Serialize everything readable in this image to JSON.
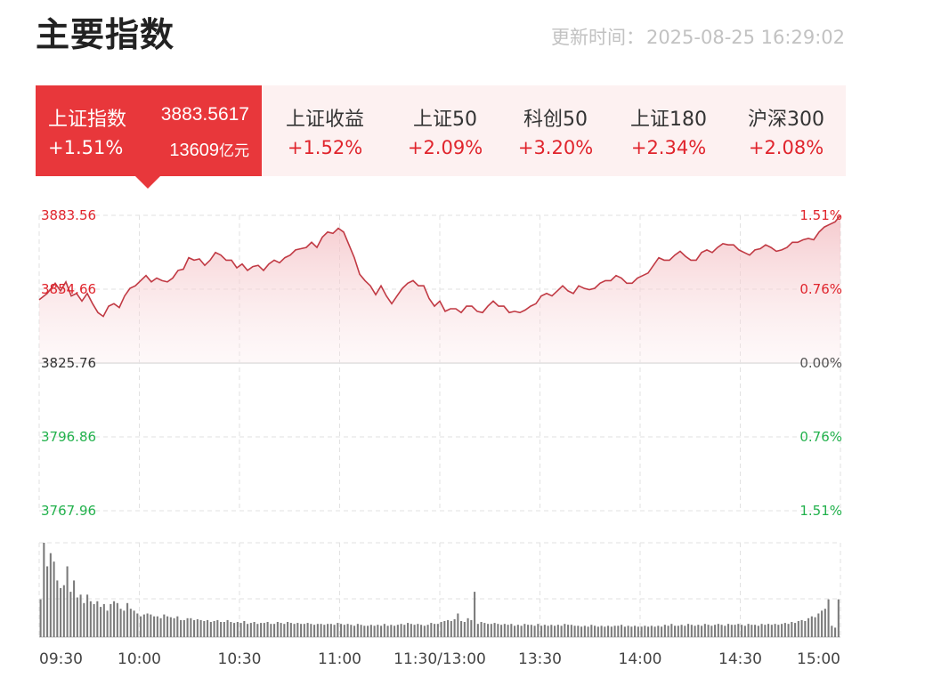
{
  "header": {
    "title": "主要指数",
    "update_label": "更新时间：",
    "update_time": "2025-08-25 16:29:02"
  },
  "tabs": [
    {
      "name": "上证指数",
      "value": "3883.5617",
      "change": "+1.51%",
      "amount": "13609",
      "amount_unit": "亿元",
      "active": true
    },
    {
      "name": "上证收益",
      "change": "+1.52%"
    },
    {
      "name": "上证50",
      "change": "+2.09%"
    },
    {
      "name": "科创50",
      "change": "+3.20%"
    },
    {
      "name": "上证180",
      "change": "+2.34%"
    },
    {
      "name": "沪深300",
      "change": "+2.08%"
    }
  ],
  "colors": {
    "up": "#e0242c",
    "down": "#22b14c",
    "flat": "#333333",
    "active_tab": "#e8373b",
    "tab_bg": "#fdf1f1",
    "volume": "#7a7a7a"
  },
  "chart_data": {
    "type": "line",
    "series_name": "上证指数",
    "prev_close": 3825.76,
    "ylim": [
      3767.96,
      3883.56
    ],
    "y_ticks_left": [
      "3883.56",
      "3854.66",
      "3825.76",
      "3796.86",
      "3767.96"
    ],
    "y_ticks_right": [
      "1.51%",
      "0.76%",
      "0.00%",
      "0.76%",
      "1.51%"
    ],
    "x_ticks": [
      "09:30",
      "10:00",
      "10:30",
      "11:00",
      "11:30/13:00",
      "13:30",
      "14:00",
      "14:30",
      "15:00"
    ],
    "x_max_minutes": 240,
    "price_points": [
      [
        0,
        3850.5
      ],
      [
        3,
        3853
      ],
      [
        6,
        3857
      ],
      [
        8,
        3854
      ],
      [
        10,
        3857.5
      ],
      [
        12,
        3852
      ],
      [
        14,
        3853
      ],
      [
        16,
        3850
      ],
      [
        18,
        3853
      ],
      [
        20,
        3849
      ],
      [
        22,
        3845.5
      ],
      [
        24,
        3844
      ],
      [
        26,
        3848
      ],
      [
        28,
        3849
      ],
      [
        30,
        3847.5
      ],
      [
        32,
        3852
      ],
      [
        34,
        3855
      ],
      [
        36,
        3856
      ],
      [
        38,
        3858
      ],
      [
        40,
        3860
      ],
      [
        42,
        3857.5
      ],
      [
        44,
        3859
      ],
      [
        46,
        3858
      ],
      [
        48,
        3857.5
      ],
      [
        50,
        3859
      ],
      [
        52,
        3862
      ],
      [
        54,
        3862.5
      ],
      [
        56,
        3867
      ],
      [
        58,
        3866
      ],
      [
        60,
        3866.5
      ],
      [
        62,
        3864
      ],
      [
        64,
        3866
      ],
      [
        66,
        3869
      ],
      [
        68,
        3868
      ],
      [
        70,
        3866
      ],
      [
        72,
        3866
      ],
      [
        74,
        3863
      ],
      [
        76,
        3864.5
      ],
      [
        78,
        3862
      ],
      [
        80,
        3863.5
      ],
      [
        82,
        3864
      ],
      [
        84,
        3862
      ],
      [
        86,
        3864.5
      ],
      [
        88,
        3866
      ],
      [
        90,
        3865
      ],
      [
        92,
        3867
      ],
      [
        94,
        3868
      ],
      [
        96,
        3870
      ],
      [
        98,
        3870.5
      ],
      [
        100,
        3871
      ],
      [
        102,
        3873
      ],
      [
        104,
        3871
      ],
      [
        106,
        3875
      ],
      [
        108,
        3877
      ],
      [
        110,
        3876.5
      ],
      [
        112,
        3878.5
      ],
      [
        114,
        3877
      ],
      [
        116,
        3872
      ],
      [
        118,
        3867
      ],
      [
        120,
        3860.5
      ],
      [
        122,
        3858
      ],
      [
        124,
        3856
      ],
      [
        126,
        3852.5
      ],
      [
        128,
        3856
      ],
      [
        130,
        3852
      ],
      [
        132,
        3849
      ],
      [
        134,
        3852
      ],
      [
        136,
        3855
      ],
      [
        138,
        3857
      ],
      [
        140,
        3858
      ],
      [
        142,
        3856
      ],
      [
        144,
        3856
      ],
      [
        146,
        3851
      ],
      [
        148,
        3848
      ],
      [
        150,
        3850
      ],
      [
        152,
        3846
      ],
      [
        154,
        3847
      ],
      [
        156,
        3847
      ],
      [
        158,
        3845.5
      ],
      [
        160,
        3848
      ],
      [
        162,
        3848
      ],
      [
        164,
        3846
      ],
      [
        166,
        3845.5
      ],
      [
        168,
        3848
      ],
      [
        170,
        3850
      ],
      [
        172,
        3848
      ],
      [
        174,
        3848
      ],
      [
        176,
        3845.5
      ],
      [
        178,
        3846
      ],
      [
        180,
        3845.5
      ],
      [
        182,
        3846.5
      ],
      [
        184,
        3848
      ],
      [
        186,
        3849
      ],
      [
        188,
        3852
      ],
      [
        190,
        3853
      ],
      [
        192,
        3852
      ],
      [
        194,
        3854
      ],
      [
        196,
        3856
      ],
      [
        198,
        3854
      ],
      [
        200,
        3853
      ],
      [
        202,
        3856
      ],
      [
        204,
        3855
      ],
      [
        206,
        3854.5
      ],
      [
        208,
        3855
      ],
      [
        210,
        3857
      ],
      [
        212,
        3858
      ],
      [
        214,
        3858
      ],
      [
        216,
        3860
      ],
      [
        218,
        3859
      ],
      [
        220,
        3857
      ],
      [
        222,
        3857
      ],
      [
        224,
        3859
      ],
      [
        226,
        3860
      ],
      [
        228,
        3861
      ],
      [
        230,
        3864
      ],
      [
        232,
        3867
      ],
      [
        234,
        3866
      ],
      [
        236,
        3866
      ],
      [
        238,
        3868
      ],
      [
        240,
        3869.5
      ],
      [
        242,
        3867.5
      ],
      [
        244,
        3866
      ],
      [
        246,
        3866
      ],
      [
        248,
        3869
      ],
      [
        250,
        3870
      ],
      [
        252,
        3869
      ],
      [
        254,
        3871
      ],
      [
        256,
        3872.5
      ],
      [
        258,
        3872
      ],
      [
        260,
        3872
      ],
      [
        262,
        3870
      ],
      [
        264,
        3869
      ],
      [
        266,
        3868
      ],
      [
        268,
        3870
      ],
      [
        270,
        3870.5
      ],
      [
        272,
        3872
      ],
      [
        274,
        3871
      ],
      [
        276,
        3869.5
      ],
      [
        278,
        3870
      ],
      [
        280,
        3871
      ],
      [
        282,
        3873
      ],
      [
        284,
        3873
      ],
      [
        286,
        3874
      ],
      [
        288,
        3874.5
      ],
      [
        290,
        3874
      ],
      [
        292,
        3877
      ],
      [
        294,
        3879
      ],
      [
        296,
        3880
      ],
      [
        298,
        3881
      ],
      [
        300,
        3883.56
      ]
    ],
    "volume_max": 100,
    "volume": [
      40,
      100,
      75,
      89,
      80,
      60,
      52,
      55,
      75,
      48,
      60,
      42,
      45,
      36,
      45,
      38,
      35,
      38,
      32,
      35,
      28,
      35,
      38,
      36,
      30,
      28,
      36,
      30,
      28,
      25,
      22,
      24,
      25,
      24,
      22,
      22,
      20,
      24,
      22,
      21,
      20,
      22,
      18,
      18,
      20,
      20,
      18,
      19,
      18,
      17,
      18,
      16,
      17,
      18,
      16,
      16,
      18,
      16,
      15,
      16,
      15,
      17,
      14,
      15,
      16,
      14,
      15,
      15,
      16,
      14,
      14,
      16,
      15,
      14,
      16,
      15,
      14,
      15,
      14,
      14,
      15,
      14,
      13,
      14,
      14,
      13,
      14,
      14,
      13,
      15,
      14,
      13,
      14,
      13,
      12,
      14,
      13,
      12,
      12,
      13,
      12,
      13,
      12,
      14,
      12,
      13,
      12,
      13,
      14,
      13,
      15,
      14,
      13,
      14,
      13,
      12,
      13,
      15,
      14,
      14,
      16,
      17,
      18,
      17,
      19,
      25,
      17,
      16,
      20,
      18,
      48,
      14,
      16,
      15,
      14,
      14,
      15,
      14,
      13,
      14,
      13,
      14,
      12,
      13,
      12,
      14,
      13,
      13,
      12,
      14,
      12,
      13,
      12,
      13,
      12,
      13,
      12,
      14,
      13,
      13,
      12,
      12,
      11,
      12,
      11,
      13,
      12,
      11,
      12,
      11,
      12,
      11,
      12,
      12,
      13,
      11,
      12,
      11,
      12,
      11,
      11,
      12,
      11,
      12,
      11,
      12,
      11,
      13,
      12,
      14,
      12,
      12,
      13,
      12,
      14,
      13,
      12,
      13,
      12,
      14,
      13,
      12,
      13,
      14,
      13,
      12,
      14,
      13,
      13,
      14,
      13,
      12,
      14,
      13,
      13,
      12,
      14,
      13,
      14,
      13,
      14,
      13,
      14,
      15,
      14,
      16,
      15,
      17,
      18,
      17,
      20,
      22,
      21,
      25,
      28,
      30,
      40,
      12,
      10,
      40
    ]
  }
}
